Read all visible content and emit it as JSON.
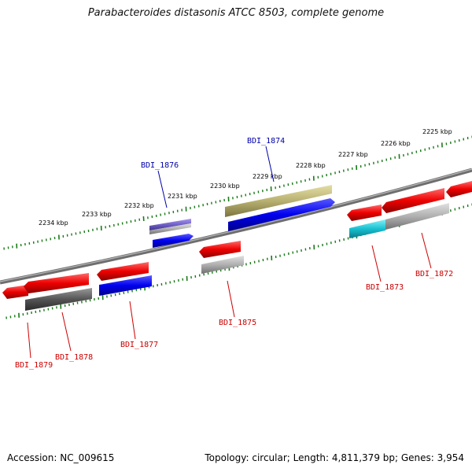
{
  "title": "Parabacteroides distasonis ATCC 8503, complete genome",
  "footer": {
    "accession": "Accession: NC_009615",
    "summary": "Topology: circular; Length: 4,811,379 bp; Genes: 3,954"
  },
  "kbp_labels": [
    "2234 kbp",
    "2233 kbp",
    "2232 kbp",
    "2231 kbp",
    "2230 kbp",
    "2229 kbp",
    "2228 kbp",
    "2227 kbp",
    "2226 kbp",
    "2225 kbp"
  ],
  "gene_labels": {
    "forward": [
      "BDI_1876",
      "BDI_1874"
    ],
    "reverse": [
      "BDI_1879",
      "BDI_1878",
      "BDI_1877",
      "BDI_1875",
      "BDI_1873",
      "BDI_1872"
    ]
  },
  "colors": {
    "backbone": "#7a7a7a",
    "tick": "#1a7a1a",
    "cds_forward": "#0000ee",
    "cds_reverse": "#ee0000",
    "gene_gray": "#b0b0b0",
    "gene_dark": "#555555",
    "gene_olive": "#b8b070",
    "gene_purple": "#7060c8",
    "gene_cyan": "#18c0d0",
    "label_forward": "#0000aa",
    "label_reverse": "#cc0000"
  }
}
